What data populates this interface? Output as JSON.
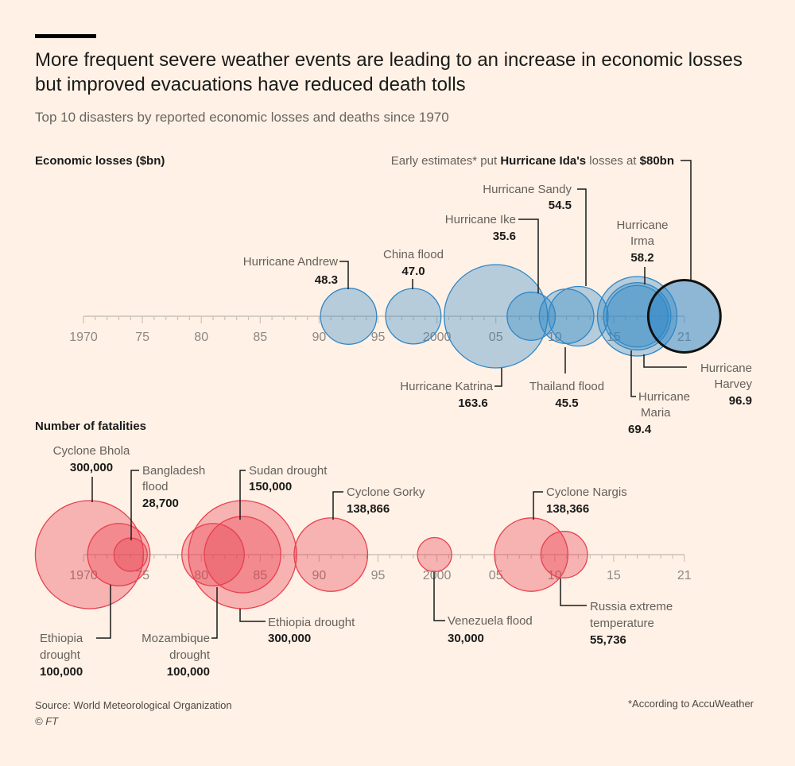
{
  "header": {
    "title": "More frequent severe weather events are leading to an increase in economic losses but improved evacuations have reduced death tolls",
    "subtitle": "Top 10 disasters by reported economic losses and deaths since 1970"
  },
  "footer": {
    "source": "Source: World Meteorological Organization",
    "copyright": "© FT",
    "note": "*According to AccuWeather"
  },
  "colors": {
    "blue": "#2f86c6",
    "red": "#e8404f",
    "bg": "#fff1e5"
  },
  "chart_data": [
    {
      "type": "scatter",
      "title": "Economic losses ($bn)",
      "xlim": [
        1970,
        2021
      ],
      "ticks": [
        "1970",
        "75",
        "80",
        "85",
        "90",
        "95",
        "2000",
        "05",
        "10",
        "15",
        "21"
      ],
      "tick_years": [
        1970,
        1975,
        1980,
        1985,
        1990,
        1995,
        2000,
        2005,
        2010,
        2015,
        2021
      ],
      "annotation": {
        "pre": "Early estimates* put ",
        "bold1": "Hurricane Ida's",
        "mid": " losses at ",
        "bold2": "$80bn",
        "year": 2021,
        "value": 80
      },
      "points": [
        {
          "name": "Hurricane Andrew",
          "year": 1992.5,
          "value": 48.3,
          "label": "48.3"
        },
        {
          "name": "China flood",
          "year": 1998,
          "value": 47.0,
          "label": "47.0"
        },
        {
          "name": "Hurricane Katrina",
          "year": 2005,
          "value": 163.6,
          "label": "163.6"
        },
        {
          "name": "Hurricane Ike",
          "year": 2008,
          "value": 35.6,
          "label": "35.6"
        },
        {
          "name": "Thailand flood",
          "year": 2011,
          "value": 45.5,
          "label": "45.5"
        },
        {
          "name": "Hurricane Sandy",
          "year": 2012,
          "value": 54.5,
          "label": "54.5"
        },
        {
          "name": "Hurricane Maria",
          "year": 2017,
          "value": 69.4,
          "label": "69.4"
        },
        {
          "name": "Hurricane Irma",
          "year": 2017,
          "value": 58.2,
          "label": "58.2"
        },
        {
          "name": "Hurricane Harvey",
          "year": 2017,
          "value": 96.9,
          "label": "96.9"
        }
      ]
    },
    {
      "type": "scatter",
      "title": "Number of fatalities",
      "xlim": [
        1970,
        2021
      ],
      "ticks": [
        "1970",
        "75",
        "80",
        "85",
        "90",
        "95",
        "2000",
        "05",
        "10",
        "15",
        "21"
      ],
      "tick_years": [
        1970,
        1975,
        1980,
        1985,
        1990,
        1995,
        2000,
        2005,
        2010,
        2015,
        2021
      ],
      "points": [
        {
          "name": "Cyclone Bhola",
          "year": 1970.5,
          "value": 300000,
          "label": "300,000"
        },
        {
          "name": "Ethiopia drought",
          "year": 1973,
          "value": 100000,
          "label": "100,000"
        },
        {
          "name": "Bangladesh flood",
          "year": 1974,
          "value": 28700,
          "label": "28,700"
        },
        {
          "name": "Ethiopia drought",
          "year": 1983.5,
          "value": 300000,
          "label": "300,000"
        },
        {
          "name": "Mozambique drought",
          "year": 1981,
          "value": 100000,
          "label": "100,000"
        },
        {
          "name": "Sudan drought",
          "year": 1983.5,
          "value": 150000,
          "label": "150,000"
        },
        {
          "name": "Cyclone Gorky",
          "year": 1991,
          "value": 138866,
          "label": "138,866"
        },
        {
          "name": "Venezuela flood",
          "year": 1999.8,
          "value": 30000,
          "label": "30,000"
        },
        {
          "name": "Cyclone Nargis",
          "year": 2008,
          "value": 138366,
          "label": "138,366"
        },
        {
          "name": "Russia extreme temperature",
          "year": 2010.8,
          "value": 55736,
          "label": "55,736"
        }
      ]
    }
  ]
}
